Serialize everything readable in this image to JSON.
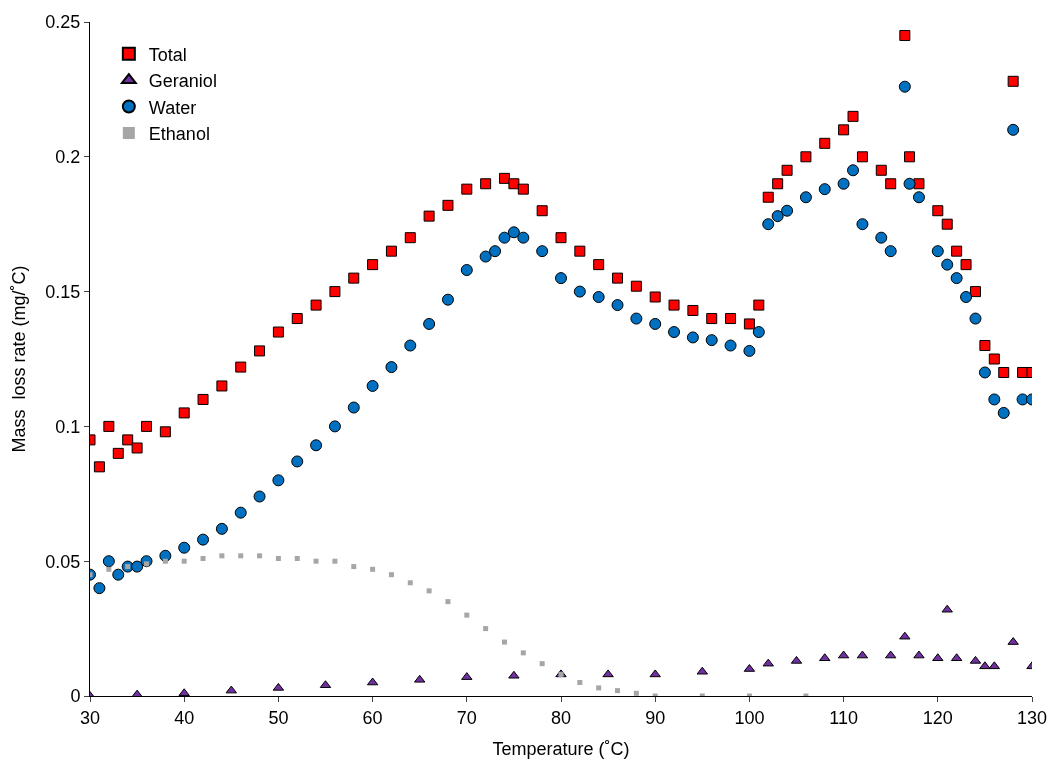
{
  "chart_data": {
    "type": "scatter",
    "xlabel": "Temperature (˚C)",
    "ylabel": "Mass  loss rate (mg/˚C)",
    "xlim": [
      30,
      130
    ],
    "xticks": [
      30,
      40,
      50,
      60,
      70,
      80,
      90,
      100,
      110,
      120,
      130
    ],
    "ylim": [
      0,
      0.25
    ],
    "yticks": [
      0,
      0.05,
      0.1,
      0.15,
      0.2,
      0.25
    ],
    "grid": false,
    "legend": "top left",
    "series": [
      {
        "name": "Total",
        "color": "#ff0000",
        "marker": "square",
        "x": [
          30,
          31,
          32,
          33,
          34,
          35,
          36,
          38,
          40,
          42,
          44,
          46,
          48,
          50,
          52,
          54,
          56,
          58,
          60,
          62,
          64,
          66,
          68,
          70,
          72,
          74,
          75,
          76,
          78,
          80,
          82,
          84,
          86,
          88,
          90,
          92,
          94,
          96,
          98,
          100,
          101,
          102,
          103,
          104,
          106,
          108,
          110,
          111,
          112,
          114,
          115,
          116.5,
          117,
          118,
          120,
          121,
          122,
          123,
          124,
          125,
          126,
          127,
          128,
          129,
          130
        ],
        "values": [
          0.095,
          0.085,
          0.1,
          0.09,
          0.095,
          0.092,
          0.1,
          0.098,
          0.105,
          0.11,
          0.115,
          0.122,
          0.128,
          0.135,
          0.14,
          0.145,
          0.15,
          0.155,
          0.16,
          0.165,
          0.17,
          0.178,
          0.182,
          0.188,
          0.19,
          0.192,
          0.19,
          0.188,
          0.18,
          0.17,
          0.165,
          0.16,
          0.155,
          0.152,
          0.148,
          0.145,
          0.143,
          0.14,
          0.14,
          0.138,
          0.145,
          0.185,
          0.19,
          0.195,
          0.2,
          0.205,
          0.21,
          0.215,
          0.2,
          0.195,
          0.19,
          0.245,
          0.2,
          0.19,
          0.18,
          0.175,
          0.165,
          0.16,
          0.15,
          0.13,
          0.125,
          0.12,
          0.228,
          0.12,
          0.12
        ]
      },
      {
        "name": "Geraniol",
        "color": "#7030a0",
        "marker": "triangle",
        "x": [
          30,
          35,
          40,
          45,
          50,
          55,
          60,
          65,
          70,
          75,
          80,
          85,
          90,
          95,
          100,
          102,
          105,
          108,
          110,
          112,
          115,
          116.5,
          118,
          120,
          121,
          122,
          124,
          125,
          126,
          128,
          130
        ],
        "values": [
          0.0,
          0.0005,
          0.001,
          0.002,
          0.003,
          0.004,
          0.005,
          0.006,
          0.007,
          0.0075,
          0.008,
          0.008,
          0.008,
          0.009,
          0.01,
          0.012,
          0.013,
          0.014,
          0.015,
          0.015,
          0.015,
          0.022,
          0.015,
          0.014,
          0.032,
          0.014,
          0.013,
          0.011,
          0.011,
          0.02,
          0.011
        ]
      },
      {
        "name": "Water",
        "color": "#0070c0",
        "marker": "circle",
        "x": [
          30,
          31,
          32,
          33,
          34,
          35,
          36,
          38,
          40,
          42,
          44,
          46,
          48,
          50,
          52,
          54,
          56,
          58,
          60,
          62,
          64,
          66,
          68,
          70,
          72,
          73,
          74,
          75,
          76,
          78,
          80,
          82,
          84,
          86,
          88,
          90,
          92,
          94,
          96,
          98,
          100,
          101,
          102,
          103,
          104,
          106,
          108,
          110,
          111,
          112,
          114,
          115,
          116.5,
          117,
          118,
          120,
          121,
          122,
          123,
          124,
          125,
          126,
          127,
          128,
          129,
          130
        ],
        "values": [
          0.045,
          0.04,
          0.05,
          0.045,
          0.048,
          0.048,
          0.05,
          0.052,
          0.055,
          0.058,
          0.062,
          0.068,
          0.074,
          0.08,
          0.087,
          0.093,
          0.1,
          0.107,
          0.115,
          0.122,
          0.13,
          0.138,
          0.147,
          0.158,
          0.163,
          0.165,
          0.17,
          0.172,
          0.17,
          0.165,
          0.155,
          0.15,
          0.148,
          0.145,
          0.14,
          0.138,
          0.135,
          0.133,
          0.132,
          0.13,
          0.128,
          0.135,
          0.175,
          0.178,
          0.18,
          0.185,
          0.188,
          0.19,
          0.195,
          0.175,
          0.17,
          0.165,
          0.226,
          0.19,
          0.185,
          0.165,
          0.16,
          0.155,
          0.148,
          0.14,
          0.12,
          0.11,
          0.105,
          0.21,
          0.11,
          0.11
        ]
      },
      {
        "name": "Ethanol",
        "color": "#a6a6a6",
        "marker": "square",
        "x": [
          30,
          32,
          34,
          36,
          38,
          40,
          42,
          44,
          46,
          48,
          50,
          52,
          54,
          56,
          58,
          60,
          62,
          64,
          66,
          68,
          70,
          72,
          74,
          76,
          78,
          80,
          82,
          84,
          86,
          88,
          90,
          95,
          100,
          106
        ],
        "values": [
          0.045,
          0.047,
          0.048,
          0.049,
          0.05,
          0.05,
          0.051,
          0.052,
          0.052,
          0.052,
          0.051,
          0.051,
          0.05,
          0.05,
          0.048,
          0.047,
          0.045,
          0.042,
          0.039,
          0.035,
          0.03,
          0.025,
          0.02,
          0.016,
          0.012,
          0.008,
          0.005,
          0.003,
          0.002,
          0.001,
          0.0,
          0.0,
          0.0,
          0.0
        ]
      }
    ]
  }
}
